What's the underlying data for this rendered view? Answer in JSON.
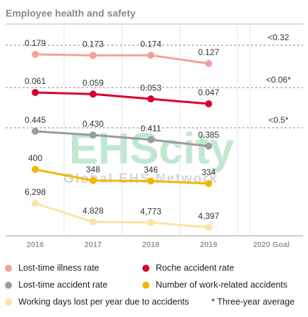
{
  "chart_data": {
    "type": "line",
    "title": "Employee health and safety",
    "categories": [
      "2016",
      "2017",
      "2018",
      "2019"
    ],
    "goal_label": "2020 Goal",
    "series": [
      {
        "name": "Lost-time illness rate",
        "color": "#f2a19b",
        "values": [
          0.179,
          0.173,
          0.174,
          0.127
        ],
        "value_labels": [
          "0.179",
          "0.173",
          "0.174",
          "0.127"
        ],
        "goal": "<0.32"
      },
      {
        "name": "Roche accident rate",
        "color": "#d8002c",
        "values": [
          0.061,
          0.059,
          0.053,
          0.047
        ],
        "value_labels": [
          "0.061",
          "0.059",
          "0.053",
          "0.047"
        ],
        "goal": "<0.06*"
      },
      {
        "name": "Lost-time accident rate",
        "color": "#9b9b9b",
        "values": [
          0.445,
          0.43,
          0.411,
          0.385
        ],
        "value_labels": [
          "0.445",
          "0.430",
          "0.411",
          "0.385"
        ],
        "goal": "<0.5*"
      },
      {
        "name": "Number of work-related accidents",
        "color": "#f2b700",
        "values": [
          400,
          348,
          346,
          334
        ],
        "value_labels": [
          "400",
          "348",
          "346",
          "334"
        ]
      },
      {
        "name": "Working days lost per year due to accidents",
        "color": "#fbe4a2",
        "values": [
          6298,
          4828,
          4773,
          4397
        ],
        "value_labels": [
          "6,298",
          "4,828",
          "4,773",
          "4,397"
        ]
      }
    ],
    "note": "* Three-year average",
    "watermark": {
      "text": "EHScity",
      "subtext": "Global EHS Network"
    }
  }
}
